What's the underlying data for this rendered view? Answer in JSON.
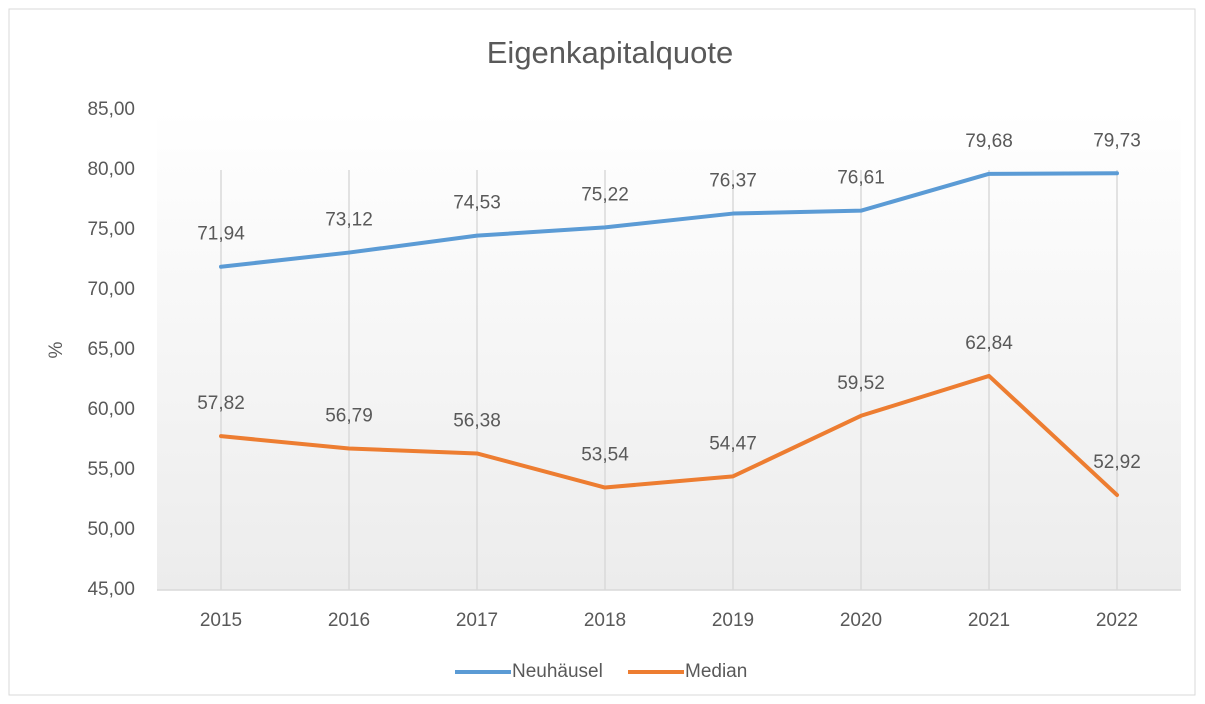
{
  "chart_data": {
    "type": "line",
    "title": "Eigenkapitalquote",
    "y_label": "%",
    "categories": [
      "2015",
      "2016",
      "2017",
      "2018",
      "2019",
      "2020",
      "2021",
      "2022"
    ],
    "series": [
      {
        "name": "Neuhäusel",
        "color": "#5b9bd5",
        "values": [
          71.94,
          73.12,
          74.53,
          75.22,
          76.37,
          76.61,
          79.68,
          79.73
        ],
        "value_labels": [
          "71,94",
          "73,12",
          "74,53",
          "75,22",
          "76,37",
          "76,61",
          "79,68",
          "79,73"
        ]
      },
      {
        "name": "Median",
        "color": "#ed7d31",
        "values": [
          57.82,
          56.79,
          56.38,
          53.54,
          54.47,
          59.52,
          62.84,
          52.92
        ],
        "value_labels": [
          "57,82",
          "56,79",
          "56,38",
          "53,54",
          "54,47",
          "59,52",
          "62,84",
          "52,92"
        ]
      }
    ],
    "ylim": [
      45,
      85
    ],
    "yticks": [
      {
        "value": 45,
        "label": "45,00"
      },
      {
        "value": 50,
        "label": "50,00"
      },
      {
        "value": 55,
        "label": "55,00"
      },
      {
        "value": 60,
        "label": "60,00"
      },
      {
        "value": 65,
        "label": "65,00"
      },
      {
        "value": 70,
        "label": "70,00"
      },
      {
        "value": 75,
        "label": "75,00"
      },
      {
        "value": 80,
        "label": "80,00"
      },
      {
        "value": 85,
        "label": "85,00"
      }
    ],
    "grid": "x",
    "legend": "bottom"
  }
}
